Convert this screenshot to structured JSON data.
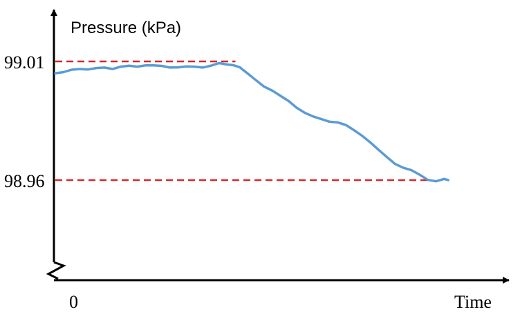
{
  "chart_data": {
    "type": "line",
    "title": "",
    "xlabel": "Time",
    "ylabel": "Pressure (kPa)",
    "xlim": [
      0,
      100
    ],
    "x_tick_labels": [
      {
        "x": 0,
        "label": "0"
      }
    ],
    "y_tick_labels": [
      {
        "y": 99.01,
        "label": "99.01"
      },
      {
        "y": 98.96,
        "label": "98.96"
      }
    ],
    "reference_lines": [
      {
        "y": 99.01,
        "x_end": 44,
        "color": "#d62728",
        "style": "dashed"
      },
      {
        "y": 98.96,
        "x_end": 92,
        "color": "#d62728",
        "style": "dashed"
      }
    ],
    "series": [
      {
        "color": "#5b9bd5",
        "points": [
          [
            0,
            99.005
          ],
          [
            2,
            99.0055
          ],
          [
            4,
            99.0065
          ],
          [
            6,
            99.0068
          ],
          [
            8,
            99.0066
          ],
          [
            10,
            99.0072
          ],
          [
            12,
            99.0074
          ],
          [
            14,
            99.0068
          ],
          [
            16,
            99.0078
          ],
          [
            18,
            99.0082
          ],
          [
            20,
            99.0078
          ],
          [
            22,
            99.0083
          ],
          [
            24,
            99.0083
          ],
          [
            26,
            99.0081
          ],
          [
            28,
            99.0074
          ],
          [
            30,
            99.0075
          ],
          [
            32,
            99.0079
          ],
          [
            34,
            99.0078
          ],
          [
            36,
            99.0074
          ],
          [
            38,
            99.0082
          ],
          [
            40,
            99.0093
          ],
          [
            42,
            99.0087
          ],
          [
            43.5,
            99.0084
          ],
          [
            45,
            99.0076
          ],
          [
            47,
            99.0049
          ],
          [
            49,
            99.0021
          ],
          [
            51,
            98.9994
          ],
          [
            53,
            98.9977
          ],
          [
            55,
            98.9955
          ],
          [
            57,
            98.9933
          ],
          [
            59,
            98.9904
          ],
          [
            61,
            98.9883
          ],
          [
            63,
            98.9868
          ],
          [
            65,
            98.9857
          ],
          [
            67,
            98.9846
          ],
          [
            69,
            98.9843
          ],
          [
            71,
            98.9832
          ],
          [
            73,
            98.981
          ],
          [
            75,
            98.9786
          ],
          [
            77,
            98.9758
          ],
          [
            79,
            98.9727
          ],
          [
            81,
            98.9697
          ],
          [
            83,
            98.9668
          ],
          [
            85,
            98.9652
          ],
          [
            87,
            98.9642
          ],
          [
            89,
            98.9623
          ],
          [
            91,
            98.9601
          ],
          [
            93,
            98.9595
          ],
          [
            95,
            98.9605
          ],
          [
            96,
            98.96
          ]
        ]
      }
    ],
    "axis_break": "y",
    "grid": false,
    "legend": "none"
  }
}
